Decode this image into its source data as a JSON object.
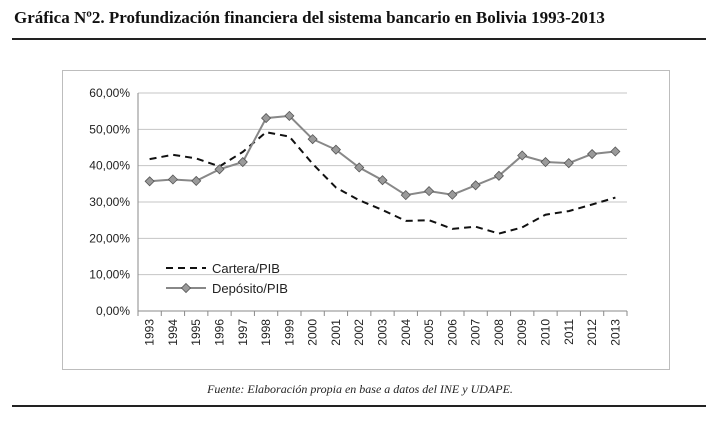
{
  "heading": "Gráfica Nº2. Profundización financiera del sistema bancario en Bolivia 1993-2013",
  "source": "Fuente: Elaboración propia en base a datos del INE y UDAPE.",
  "chart_data": {
    "type": "line",
    "title": "",
    "xlabel": "",
    "ylabel": "",
    "x": [
      "1993",
      "1994",
      "1995",
      "1996",
      "1997",
      "1998",
      "1999",
      "2000",
      "2001",
      "2002",
      "2003",
      "2004",
      "2005",
      "2006",
      "2007",
      "2008",
      "2009",
      "2010",
      "2011",
      "2012",
      "2013"
    ],
    "ylim": [
      0,
      60
    ],
    "yticks": [
      "0,00%",
      "10,00%",
      "20,00%",
      "30,00%",
      "40,00%",
      "50,00%",
      "60,00%"
    ],
    "grid": true,
    "legend_position": "bottom-left",
    "series": [
      {
        "name": "Cartera/PIB",
        "style": "dashed",
        "color": "#111111",
        "values": [
          41.8,
          43.0,
          42.0,
          39.8,
          43.8,
          49.2,
          48.0,
          40.5,
          34.0,
          30.5,
          27.8,
          24.8,
          25.0,
          22.6,
          23.2,
          21.3,
          23.0,
          26.5,
          27.5,
          29.3,
          31.2
        ]
      },
      {
        "name": "Depósito/PIB",
        "style": "solid-diamond",
        "color": "#888888",
        "values": [
          35.7,
          36.2,
          35.8,
          39.0,
          41.0,
          53.1,
          53.7,
          47.3,
          44.4,
          39.5,
          36.0,
          31.9,
          33.0,
          32.0,
          34.6,
          37.2,
          42.8,
          41.0,
          40.7,
          43.2,
          43.9
        ]
      }
    ]
  }
}
